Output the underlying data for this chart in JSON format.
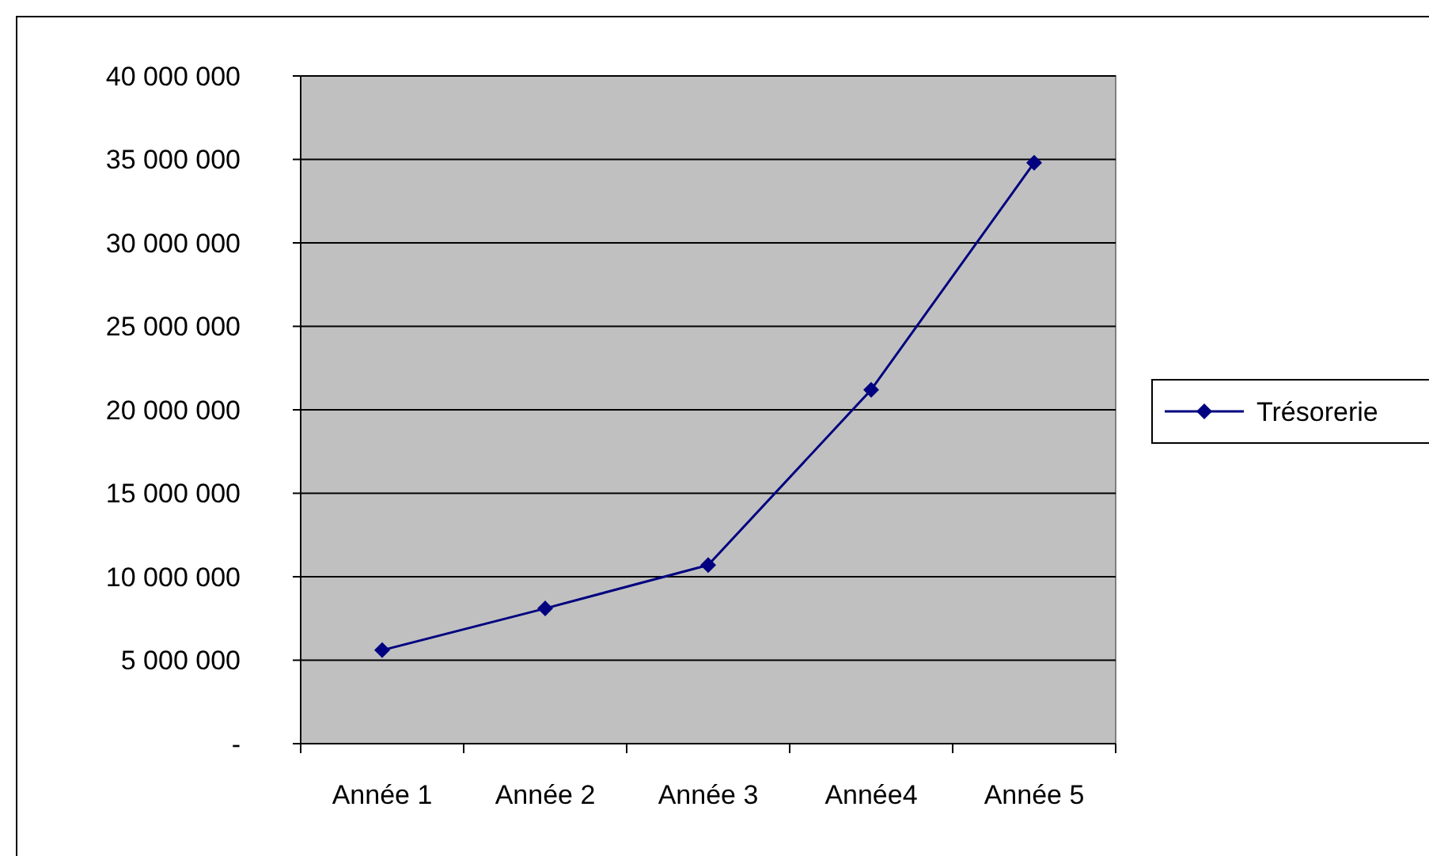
{
  "chart_data": {
    "type": "line",
    "categories": [
      "Année 1",
      "Année 2",
      "Année 3",
      "Année4",
      "Année 5"
    ],
    "series": [
      {
        "name": "Trésorerie",
        "color": "#000080",
        "values": [
          5600000,
          8100000,
          10700000,
          21200000,
          34800000
        ]
      }
    ],
    "ylim": [
      0,
      40000000
    ],
    "yticks": [
      {
        "value": 0,
        "label": "-"
      },
      {
        "value": 5000000,
        "label": "5 000 000"
      },
      {
        "value": 10000000,
        "label": "10 000 000"
      },
      {
        "value": 15000000,
        "label": "15 000 000"
      },
      {
        "value": 20000000,
        "label": "20 000 000"
      },
      {
        "value": 25000000,
        "label": "25 000 000"
      },
      {
        "value": 30000000,
        "label": "30 000 000"
      },
      {
        "value": 35000000,
        "label": "35 000 000"
      },
      {
        "value": 40000000,
        "label": "40 000 000"
      }
    ],
    "grid": "y",
    "legend": "right",
    "marker": "diamond",
    "line_style": "solid"
  }
}
